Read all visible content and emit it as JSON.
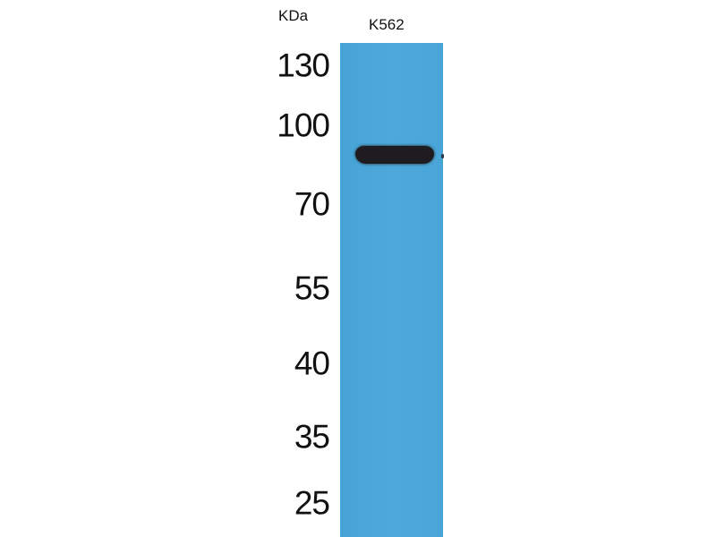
{
  "blot": {
    "unit_label": "KDa",
    "lanes": [
      {
        "label": "K562"
      }
    ],
    "markers": [
      "130",
      "100",
      "70",
      "55",
      "40",
      "35",
      "25"
    ],
    "band": {
      "lane": "K562",
      "approx_kda": 85
    },
    "colors": {
      "membrane": "#4aa7d9",
      "band": "#1e1c20"
    }
  }
}
